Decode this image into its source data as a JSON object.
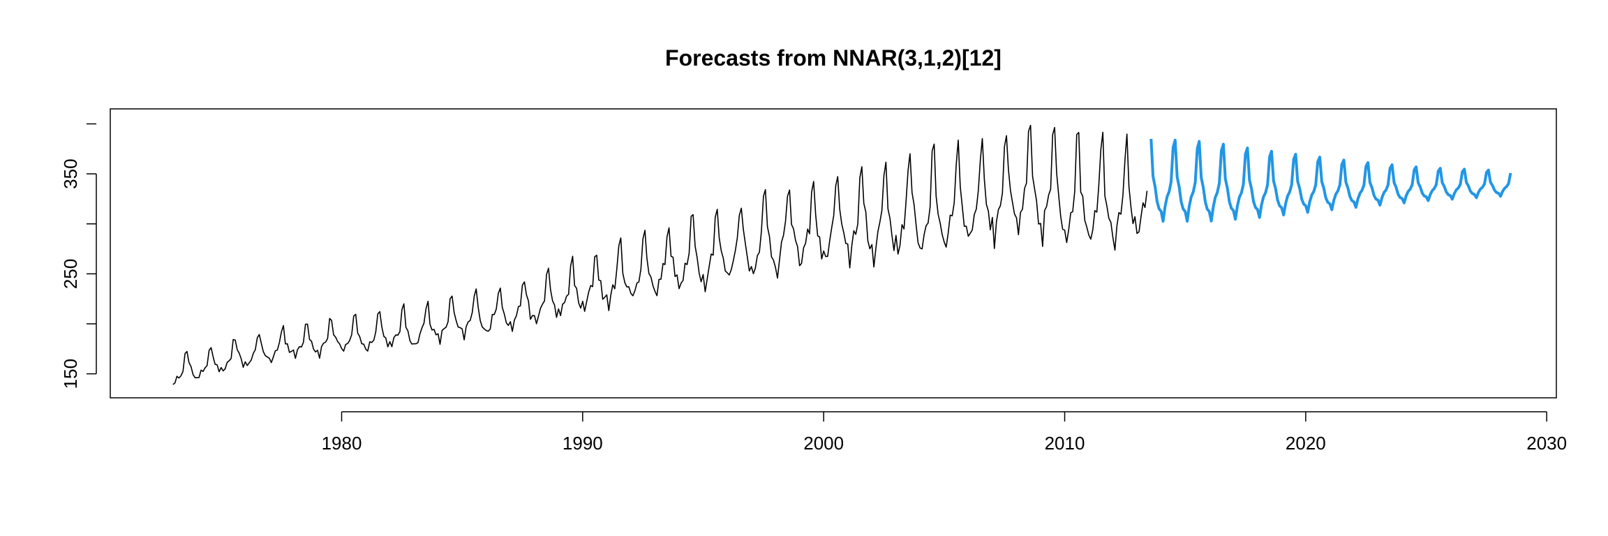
{
  "chart_data": {
    "type": "line",
    "title": "Forecasts from NNAR(3,1,2)[12]",
    "xlabel": "",
    "ylabel": "",
    "xlim": [
      1970.4,
      2030.4
    ],
    "ylim": [
      126,
      415
    ],
    "x_ticks": [
      1980,
      1990,
      2000,
      2010,
      2020,
      2030
    ],
    "x_tick_labels": [
      "1980",
      "1990",
      "2000",
      "2010",
      "2020",
      "2030"
    ],
    "y_ticks": [
      150,
      250,
      350
    ],
    "y_tick_labels": [
      "150",
      "250",
      "350"
    ],
    "grid": false,
    "legend": "none",
    "series": [
      {
        "role": "observed",
        "color": "#000000",
        "frequency": 12,
        "start": [
          1973,
          1
        ],
        "trend_points": [
          [
            1973.0,
            150
          ],
          [
            1978.0,
            180
          ],
          [
            1983.0,
            193
          ],
          [
            1988.0,
            218
          ],
          [
            1993.0,
            255
          ],
          [
            1998.0,
            285
          ],
          [
            2003.0,
            305
          ],
          [
            2008.0,
            330
          ],
          [
            2013.5,
            320
          ]
        ],
        "amplitude_points": [
          [
            1973.0,
            18
          ],
          [
            1980.0,
            22
          ],
          [
            1985.0,
            26
          ],
          [
            1990.0,
            34
          ],
          [
            1995.0,
            44
          ],
          [
            2000.0,
            52
          ],
          [
            2005.0,
            60
          ],
          [
            2010.0,
            64
          ],
          [
            2013.5,
            58
          ]
        ]
      },
      {
        "role": "forecast",
        "color": "#2196E6",
        "frequency": 12,
        "start": [
          2013,
          8
        ],
        "end": [
          2028,
          7
        ],
        "trend_points": [
          [
            2013.6,
            335
          ],
          [
            2018.0,
            333
          ],
          [
            2023.0,
            335
          ],
          [
            2028.5,
            338
          ]
        ],
        "amplitude_points": [
          [
            2013.6,
            50
          ],
          [
            2016.0,
            48
          ],
          [
            2019.0,
            38
          ],
          [
            2022.0,
            28
          ],
          [
            2025.0,
            20
          ],
          [
            2028.5,
            15
          ]
        ]
      }
    ]
  }
}
